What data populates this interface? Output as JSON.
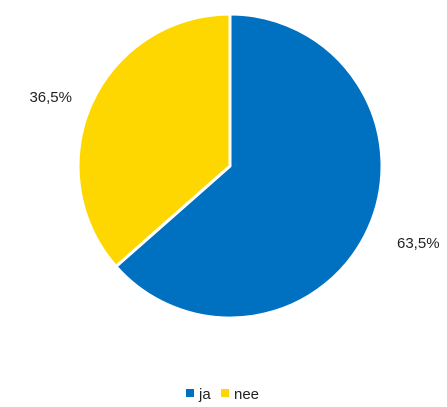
{
  "chart_data": {
    "type": "pie",
    "title": "",
    "categories": [
      "ja",
      "nee"
    ],
    "values": [
      63.5,
      36.5
    ],
    "data_labels": [
      "63,5%",
      "36,5%"
    ],
    "colors": [
      "#0070c0",
      "#ffd700"
    ],
    "start_angle_deg": 0,
    "direction": "clockwise",
    "legend": {
      "position": "bottom",
      "entries": [
        "ja",
        "nee"
      ]
    }
  }
}
